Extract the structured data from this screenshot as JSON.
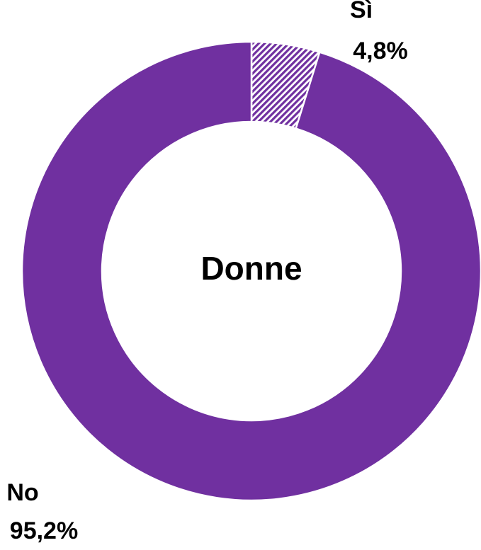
{
  "chart_data": {
    "type": "donut",
    "title": "Donne",
    "categories": [
      "Sì",
      "No"
    ],
    "values": [
      4.8,
      95.2
    ],
    "value_labels": [
      "4,8%",
      "95,2%"
    ],
    "colors": [
      "#7030a0",
      "#7030a0"
    ],
    "hatched": [
      true,
      false
    ]
  }
}
